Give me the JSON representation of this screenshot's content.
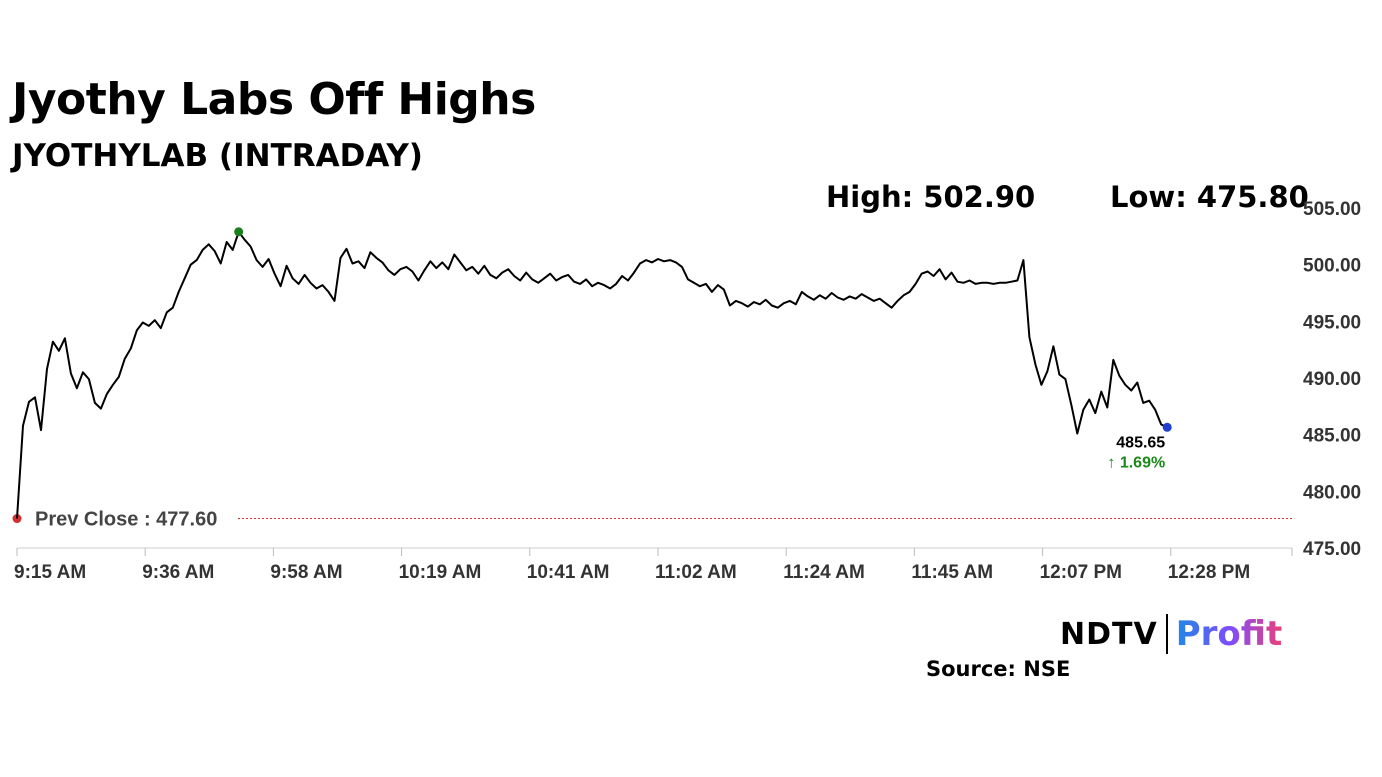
{
  "title": "Jyothy Labs Off Highs",
  "subtitle": "JYOTHYLAB (INTRADAY)",
  "high_label": "High: 502.90",
  "low_label": "Low: 475.80",
  "prev_close_label": "Prev Close : 477.60",
  "last_price_label": "485.65",
  "change_label": "↑ 1.69%",
  "source": "Source: NSE",
  "brand": {
    "left": "NDTV",
    "right": "Profit"
  },
  "colors": {
    "line": "#000000",
    "high_marker": "#1a7f1a",
    "prev_close": "#d32f2f",
    "last_marker": "#1f3fd1",
    "change_up": "#1a8a1a"
  },
  "chart_data": {
    "type": "line",
    "title": "Jyothy Labs Off Highs",
    "subtitle": "JYOTHYLAB (INTRADAY)",
    "x_ticks": [
      "9:15 AM",
      "9:36 AM",
      "9:58 AM",
      "10:19 AM",
      "10:41 AM",
      "11:02 AM",
      "11:24 AM",
      "11:45 AM",
      "12:07 PM",
      "12:28 PM"
    ],
    "y_ticks": [
      "505.00",
      "500.00",
      "495.00",
      "490.00",
      "485.00",
      "480.00",
      "475.00"
    ],
    "ylim": [
      475,
      505
    ],
    "x_start": "9:15 AM",
    "x_end": "12:41 PM",
    "prev_close": 477.6,
    "high": 502.9,
    "low": 475.8,
    "last": 485.65,
    "change_pct": 1.69,
    "series": [
      {
        "points": [
          [
            "9:15 AM",
            477.6
          ],
          [
            "9:16 AM",
            485.8
          ],
          [
            "9:17 AM",
            487.9
          ],
          [
            "9:18 AM",
            488.3
          ],
          [
            "9:19 AM",
            485.4
          ],
          [
            "9:20 AM",
            490.8
          ],
          [
            "9:21 AM",
            493.2
          ],
          [
            "9:22 AM",
            492.4
          ],
          [
            "9:23 AM",
            493.5
          ],
          [
            "9:24 AM",
            490.4
          ],
          [
            "9:25 AM",
            489.1
          ],
          [
            "9:26 AM",
            490.5
          ],
          [
            "9:27 AM",
            489.9
          ],
          [
            "9:28 AM",
            487.8
          ],
          [
            "9:29 AM",
            487.3
          ],
          [
            "9:30 AM",
            488.6
          ],
          [
            "9:31 AM",
            489.4
          ],
          [
            "9:32 AM",
            490.1
          ],
          [
            "9:33 AM",
            491.7
          ],
          [
            "9:34 AM",
            492.6
          ],
          [
            "9:35 AM",
            494.2
          ],
          [
            "9:36 AM",
            494.9
          ],
          [
            "9:37 AM",
            494.6
          ],
          [
            "9:38 AM",
            495.1
          ],
          [
            "9:39 AM",
            494.4
          ],
          [
            "9:40 AM",
            495.8
          ],
          [
            "9:41 AM",
            496.2
          ],
          [
            "9:42 AM",
            497.6
          ],
          [
            "9:43 AM",
            498.8
          ],
          [
            "9:44 AM",
            500.0
          ],
          [
            "9:45 AM",
            500.4
          ],
          [
            "9:46 AM",
            501.3
          ],
          [
            "9:47 AM",
            501.8
          ],
          [
            "9:48 AM",
            501.2
          ],
          [
            "9:49 AM",
            500.1
          ],
          [
            "9:50 AM",
            502.0
          ],
          [
            "9:51 AM",
            501.3
          ],
          [
            "9:52 AM",
            502.9
          ],
          [
            "9:53 AM",
            502.2
          ],
          [
            "9:54 AM",
            501.6
          ],
          [
            "9:55 AM",
            500.4
          ],
          [
            "9:56 AM",
            499.8
          ],
          [
            "9:57 AM",
            500.5
          ],
          [
            "9:58 AM",
            499.2
          ],
          [
            "9:59 AM",
            498.1
          ],
          [
            "10:00 AM",
            499.9
          ],
          [
            "10:01 AM",
            498.8
          ],
          [
            "10:02 AM",
            498.3
          ],
          [
            "10:03 AM",
            499.1
          ],
          [
            "10:04 AM",
            498.4
          ],
          [
            "10:05 AM",
            497.9
          ],
          [
            "10:06 AM",
            498.2
          ],
          [
            "10:07 AM",
            497.6
          ],
          [
            "10:08 AM",
            496.8
          ],
          [
            "10:09 AM",
            500.6
          ],
          [
            "10:10 AM",
            501.4
          ],
          [
            "10:11 AM",
            500.1
          ],
          [
            "10:12 AM",
            500.3
          ],
          [
            "10:13 AM",
            499.7
          ],
          [
            "10:14 AM",
            501.1
          ],
          [
            "10:15 AM",
            500.6
          ],
          [
            "10:16 AM",
            500.2
          ],
          [
            "10:17 AM",
            499.5
          ],
          [
            "10:18 AM",
            499.1
          ],
          [
            "10:19 AM",
            499.6
          ],
          [
            "10:20 AM",
            499.8
          ],
          [
            "10:21 AM",
            499.4
          ],
          [
            "10:22 AM",
            498.6
          ],
          [
            "10:23 AM",
            499.5
          ],
          [
            "10:24 AM",
            500.3
          ],
          [
            "10:25 AM",
            499.7
          ],
          [
            "10:26 AM",
            500.2
          ],
          [
            "10:27 AM",
            499.6
          ],
          [
            "10:28 AM",
            500.9
          ],
          [
            "10:29 AM",
            500.2
          ],
          [
            "10:30 AM",
            499.5
          ],
          [
            "10:31 AM",
            499.8
          ],
          [
            "10:32 AM",
            499.2
          ],
          [
            "10:33 AM",
            499.9
          ],
          [
            "10:34 AM",
            499.1
          ],
          [
            "10:35 AM",
            498.8
          ],
          [
            "10:36 AM",
            499.3
          ],
          [
            "10:37 AM",
            499.6
          ],
          [
            "10:38 AM",
            499.0
          ],
          [
            "10:39 AM",
            498.6
          ],
          [
            "10:40 AM",
            499.3
          ],
          [
            "10:41 AM",
            498.7
          ],
          [
            "10:42 AM",
            498.4
          ],
          [
            "10:43 AM",
            498.8
          ],
          [
            "10:44 AM",
            499.2
          ],
          [
            "10:45 AM",
            498.6
          ],
          [
            "10:46 AM",
            498.9
          ],
          [
            "10:47 AM",
            499.1
          ],
          [
            "10:48 AM",
            498.5
          ],
          [
            "10:49 AM",
            498.3
          ],
          [
            "10:50 AM",
            498.7
          ],
          [
            "10:51 AM",
            498.1
          ],
          [
            "10:52 AM",
            498.4
          ],
          [
            "10:53 AM",
            498.2
          ],
          [
            "10:54 AM",
            497.9
          ],
          [
            "10:55 AM",
            498.3
          ],
          [
            "10:56 AM",
            499.0
          ],
          [
            "10:57 AM",
            498.6
          ],
          [
            "10:58 AM",
            499.3
          ],
          [
            "10:59 AM",
            500.1
          ],
          [
            "11:00 AM",
            500.4
          ],
          [
            "11:01 AM",
            500.2
          ],
          [
            "11:02 AM",
            500.5
          ],
          [
            "11:03 AM",
            500.3
          ],
          [
            "11:04 AM",
            500.4
          ],
          [
            "11:05 AM",
            500.2
          ],
          [
            "11:06 AM",
            499.8
          ],
          [
            "11:07 AM",
            498.7
          ],
          [
            "11:08 AM",
            498.4
          ],
          [
            "11:09 AM",
            498.1
          ],
          [
            "11:10 AM",
            498.3
          ],
          [
            "11:11 AM",
            497.6
          ],
          [
            "11:12 AM",
            498.2
          ],
          [
            "11:13 AM",
            497.8
          ],
          [
            "11:14 AM",
            496.4
          ],
          [
            "11:15 AM",
            496.8
          ],
          [
            "11:16 AM",
            496.6
          ],
          [
            "11:17 AM",
            496.3
          ],
          [
            "11:18 AM",
            496.7
          ],
          [
            "11:19 AM",
            496.5
          ],
          [
            "11:20 AM",
            496.9
          ],
          [
            "11:21 AM",
            496.4
          ],
          [
            "11:22 AM",
            496.2
          ],
          [
            "11:23 AM",
            496.6
          ],
          [
            "11:24 AM",
            496.8
          ],
          [
            "11:25 AM",
            496.5
          ],
          [
            "11:26 AM",
            497.6
          ],
          [
            "11:27 AM",
            497.2
          ],
          [
            "11:28 AM",
            496.9
          ],
          [
            "11:29 AM",
            497.3
          ],
          [
            "11:30 AM",
            497.0
          ],
          [
            "11:31 AM",
            497.5
          ],
          [
            "11:32 AM",
            497.1
          ],
          [
            "11:33 AM",
            496.9
          ],
          [
            "11:34 AM",
            497.2
          ],
          [
            "11:35 AM",
            497.0
          ],
          [
            "11:36 AM",
            497.4
          ],
          [
            "11:37 AM",
            497.1
          ],
          [
            "11:38 AM",
            496.8
          ],
          [
            "11:39 AM",
            497.0
          ],
          [
            "11:40 AM",
            496.6
          ],
          [
            "11:41 AM",
            496.2
          ],
          [
            "11:42 AM",
            496.8
          ],
          [
            "11:43 AM",
            497.3
          ],
          [
            "11:44 AM",
            497.6
          ],
          [
            "11:45 AM",
            498.3
          ],
          [
            "11:46 AM",
            499.2
          ],
          [
            "11:47 AM",
            499.4
          ],
          [
            "11:48 AM",
            499.0
          ],
          [
            "11:49 AM",
            499.6
          ],
          [
            "11:50 AM",
            498.7
          ],
          [
            "11:51 AM",
            499.3
          ],
          [
            "11:52 AM",
            498.5
          ],
          [
            "11:53 AM",
            498.4
          ],
          [
            "11:54 AM",
            498.6
          ],
          [
            "11:55 AM",
            498.3
          ],
          [
            "11:56 AM",
            498.4
          ],
          [
            "11:57 AM",
            498.4
          ],
          [
            "11:58 AM",
            498.3
          ],
          [
            "11:59 AM",
            498.4
          ],
          [
            "12:00 PM",
            498.4
          ],
          [
            "12:01 PM",
            498.5
          ],
          [
            "12:02 PM",
            498.6
          ],
          [
            "12:03 PM",
            500.4
          ],
          [
            "12:04 PM",
            493.6
          ],
          [
            "12:05 PM",
            491.2
          ],
          [
            "12:06 PM",
            489.4
          ],
          [
            "12:07 PM",
            490.6
          ],
          [
            "12:08 PM",
            492.8
          ],
          [
            "12:09 PM",
            490.3
          ],
          [
            "12:10 PM",
            489.9
          ],
          [
            "12:11 PM",
            487.6
          ],
          [
            "12:12 PM",
            485.1
          ],
          [
            "12:13 PM",
            487.2
          ],
          [
            "12:14 PM",
            488.1
          ],
          [
            "12:15 PM",
            486.9
          ],
          [
            "12:16 PM",
            488.8
          ],
          [
            "12:17 PM",
            487.4
          ],
          [
            "12:18 PM",
            491.6
          ],
          [
            "12:19 PM",
            490.2
          ],
          [
            "12:20 PM",
            489.4
          ],
          [
            "12:21 PM",
            488.9
          ],
          [
            "12:22 PM",
            489.6
          ],
          [
            "12:23 PM",
            487.8
          ],
          [
            "12:24 PM",
            488.0
          ],
          [
            "12:25 PM",
            487.2
          ],
          [
            "12:26 PM",
            485.9
          ],
          [
            "12:27 PM",
            485.65
          ]
        ]
      }
    ]
  }
}
